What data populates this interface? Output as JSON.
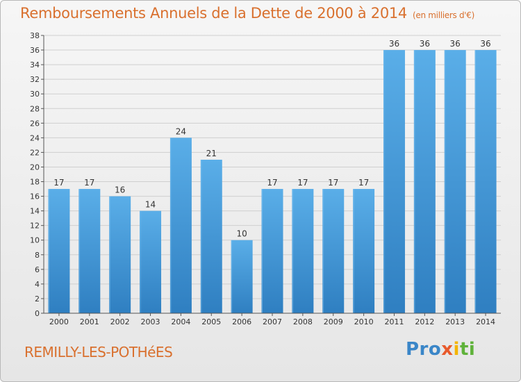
{
  "header": {
    "title": "Remboursements Annuels de la Dette de 2000 à 2014",
    "unit_note": "(en milliers d'€)"
  },
  "footer": {
    "city": "REMILLY-LES-POTHéES",
    "logo_parts": [
      "Pro",
      "x",
      "i",
      "ti"
    ]
  },
  "colors": {
    "title": "#d9702e",
    "bar_top": "#5aaee8",
    "bar_bottom": "#2f7fc1",
    "grid": "#cfcfcf",
    "axis_text": "#333333"
  },
  "chart_data": {
    "type": "bar",
    "title": "Remboursements Annuels de la Dette de 2000 à 2014",
    "xlabel": "",
    "ylabel": "",
    "unit": "(en milliers d'€)",
    "categories": [
      "2000",
      "2001",
      "2002",
      "2003",
      "2004",
      "2005",
      "2006",
      "2007",
      "2008",
      "2009",
      "2010",
      "2011",
      "2012",
      "2013",
      "2014"
    ],
    "values": [
      17,
      17,
      16,
      14,
      24,
      21,
      10,
      17,
      17,
      17,
      17,
      36,
      36,
      36,
      36
    ],
    "ylim": [
      0,
      38
    ],
    "ytick_step": 2,
    "grid": true,
    "data_labels": true
  }
}
